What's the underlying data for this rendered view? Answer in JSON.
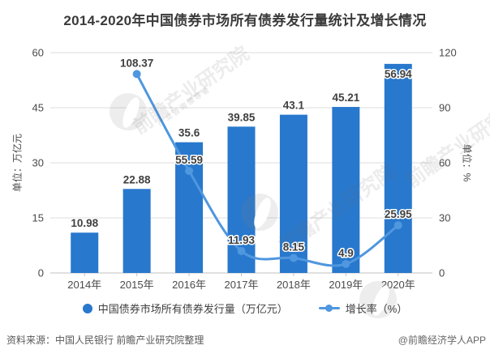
{
  "title": "2014-2020年中国债券市场所有债券发行量统计及增长情况",
  "chart_data": {
    "type": "combo",
    "categories": [
      "2014年",
      "2015年",
      "2016年",
      "2017年",
      "2018年",
      "2019年",
      "2020年"
    ],
    "series": [
      {
        "name": "中国债券市场所有债券发行量（万亿元）",
        "type": "bar",
        "axis": "left",
        "values": [
          10.98,
          22.88,
          35.6,
          39.85,
          43.1,
          45.21,
          56.94
        ],
        "labels": [
          "10.98",
          "22.88",
          "35.6",
          "39.85",
          "43.1",
          "45.21",
          "56.94"
        ]
      },
      {
        "name": "增长率（%）",
        "type": "line",
        "axis": "right",
        "values": [
          null,
          108.37,
          55.59,
          11.93,
          8.15,
          4.9,
          25.95
        ],
        "labels": [
          null,
          "108.37",
          "55.59",
          "11.93",
          "8.15",
          "4.9",
          "25.95"
        ]
      }
    ],
    "left_axis": {
      "title": "单位：万亿元",
      "ticks": [
        0,
        15,
        30,
        45,
        60
      ],
      "min": 0,
      "max": 60
    },
    "right_axis": {
      "title": "单位：%",
      "ticks": [
        0,
        30,
        60,
        90,
        120
      ],
      "min": 0,
      "max": 120
    },
    "grid": true,
    "legend_position": "bottom"
  },
  "legend": [
    {
      "label": "中国债券市场所有债券发行量（万亿元）",
      "marker": "circle",
      "color": "#2878CD"
    },
    {
      "label": "增长率（%）",
      "marker": "line-dot",
      "color": "#4F97DF"
    }
  ],
  "footer": {
    "source": "资料来源：中国人民银行 前瞻产业研究院整理",
    "credit": "@前瞻经济学人APP"
  },
  "watermark": {
    "text": "前瞻产业研究院",
    "subtext": "产业咨询领导者"
  },
  "colors": {
    "bar": "#2878CD",
    "line": "#4F97DF",
    "value_label": "#404040",
    "axis_text": "#4A4A4A",
    "gridline": "#DDDDDD",
    "axis_line": "#C2C2C2",
    "title_text": "#3A3A3A",
    "footer_text": "#595959"
  }
}
